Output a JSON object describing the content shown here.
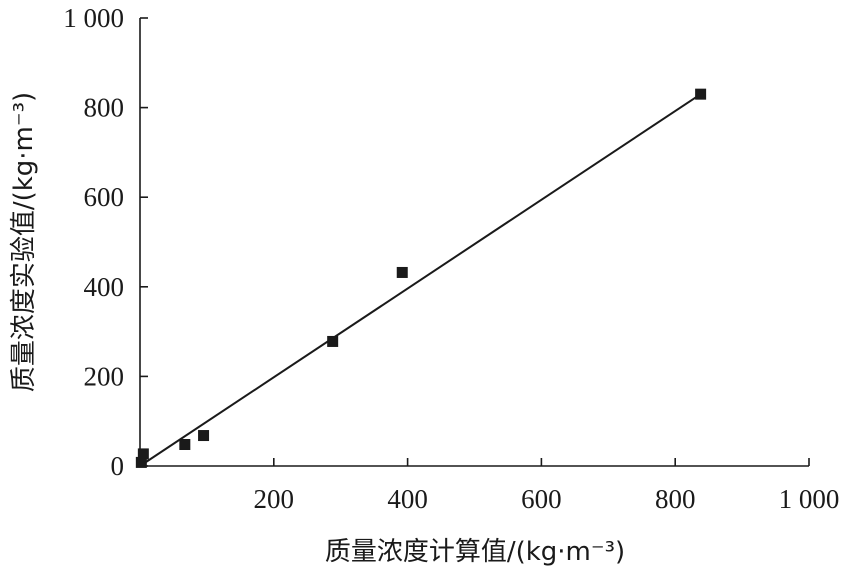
{
  "chart_data": {
    "type": "scatter",
    "title": "",
    "xlabel": "质量浓度计算值/(kg·m⁻³)",
    "ylabel": "质量浓度实验值/(kg·m⁻³)",
    "xlim": [
      0,
      1000
    ],
    "ylim": [
      0,
      1000
    ],
    "x_ticks": [
      200,
      400,
      600,
      800,
      1000
    ],
    "y_ticks": [
      0,
      200,
      400,
      600,
      800,
      1000
    ],
    "x_tick_labels": [
      "200",
      "400",
      "600",
      "800",
      "1 000"
    ],
    "y_tick_labels": [
      "0",
      "200",
      "400",
      "600",
      "800",
      "1 000"
    ],
    "grid": false,
    "legend": "none",
    "series": [
      {
        "marker": "square",
        "x": [
          2,
          5,
          67,
          95,
          288,
          392,
          838
        ],
        "y": [
          8,
          27,
          48,
          68,
          278,
          432,
          830
        ]
      }
    ],
    "fit_line": {
      "x": [
        0,
        838
      ],
      "y": [
        0,
        830
      ]
    }
  }
}
